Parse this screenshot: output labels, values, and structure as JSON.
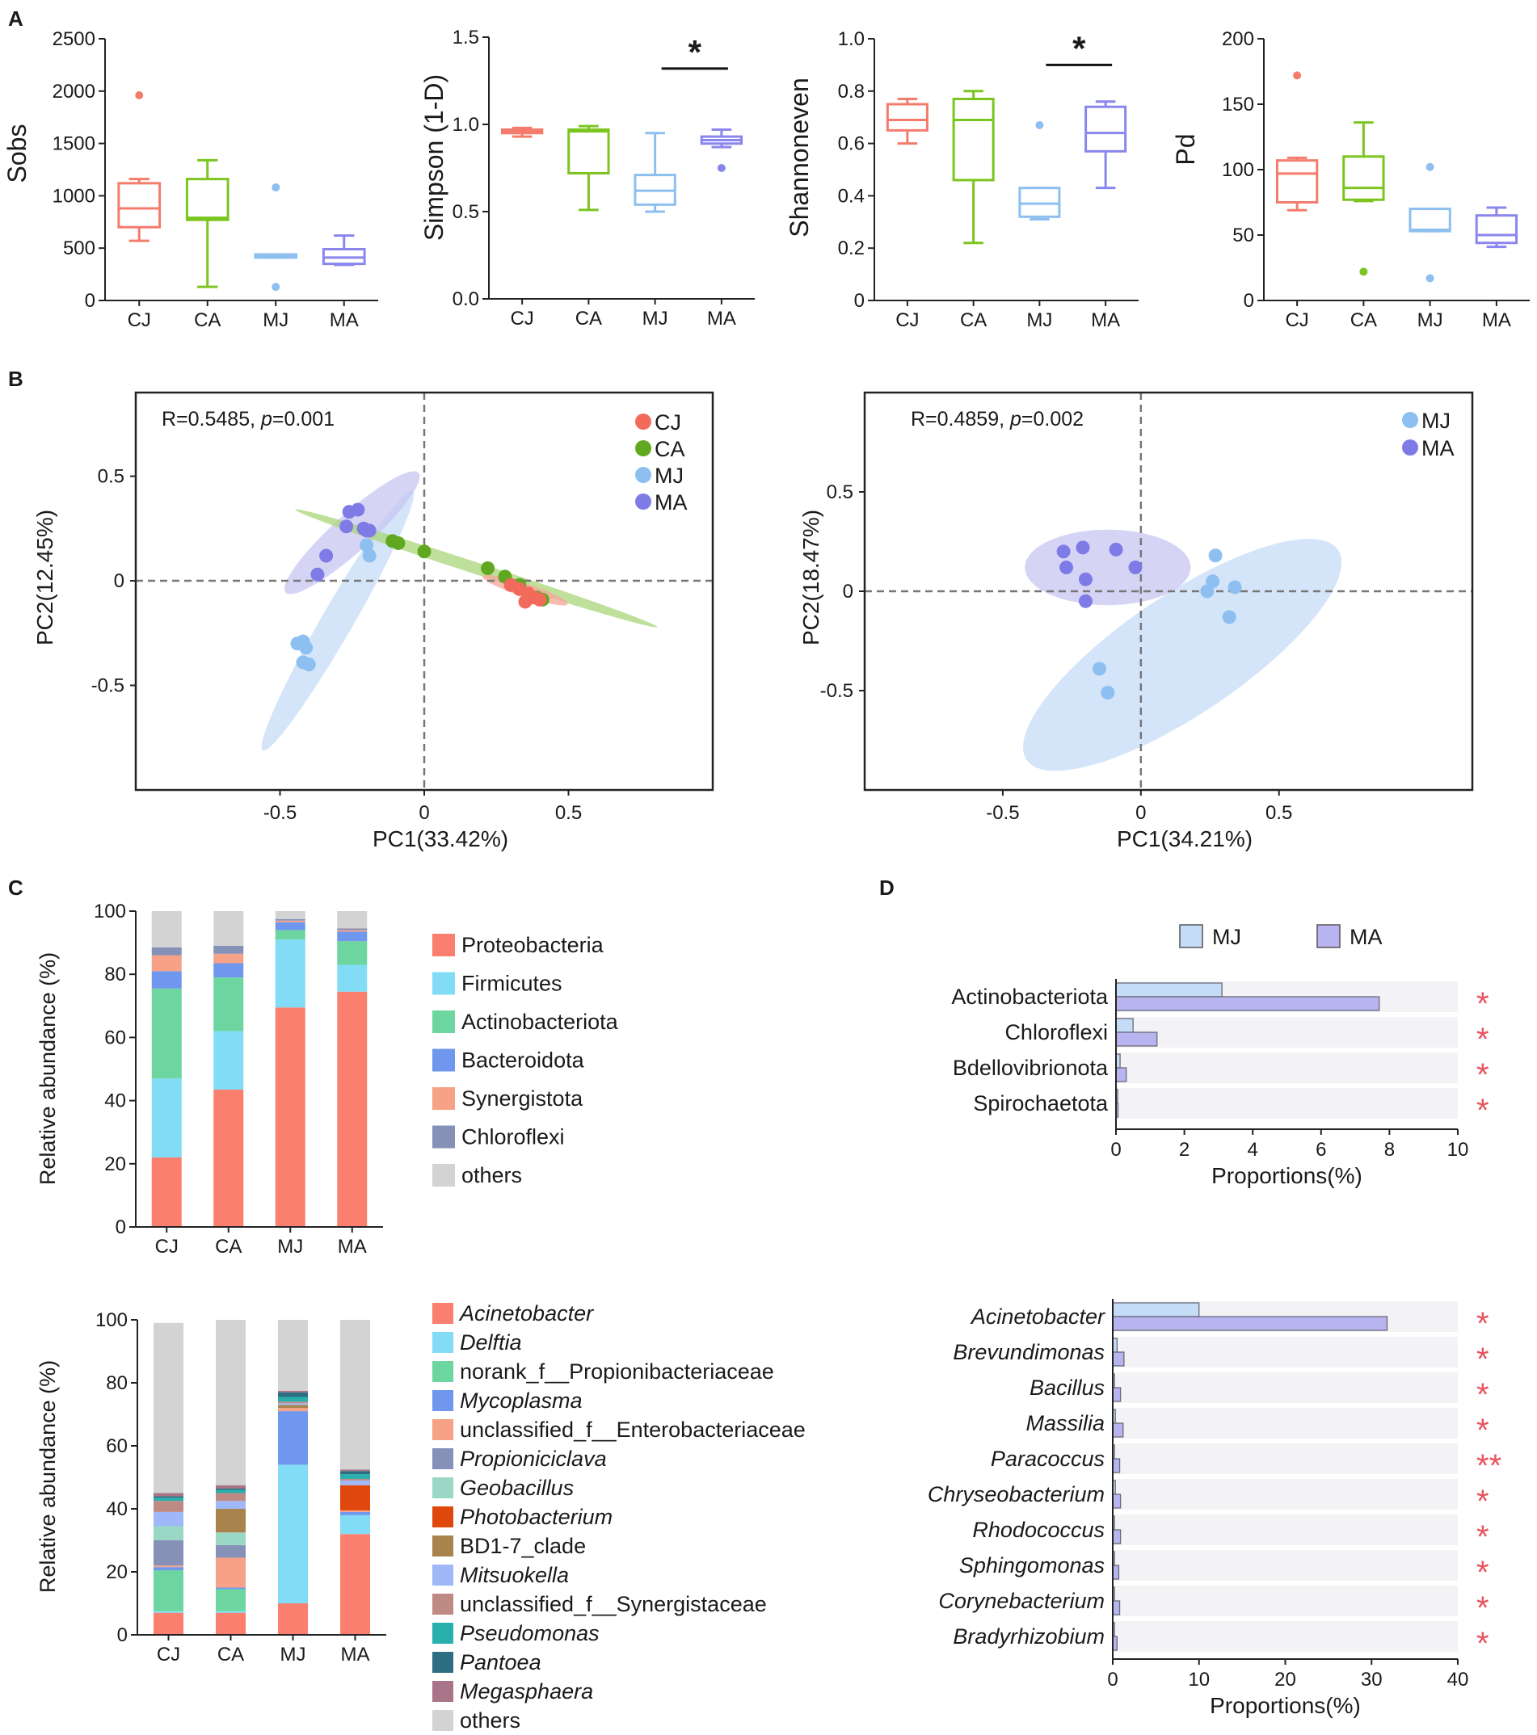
{
  "figure": {
    "background": "#ffffff"
  },
  "colors": {
    "CJ": "#f47c6c",
    "CA": "#7cc51f",
    "MJ": "#8dbff0",
    "MA": "#8a86ee",
    "ellipse_CJ": "#f6a59a",
    "ellipse_CA": "#a8d67a",
    "ellipse_MJ": "#c5dcf7",
    "ellipse_MA": "#c8c5f2",
    "pt_CJ": "#f26a5c",
    "pt_CA": "#5fa820",
    "pt_MJ": "#8dbff0",
    "pt_MA": "#7f7be6",
    "bar_MJ": "#c5dcf7",
    "bar_MA": "#b7b4f0",
    "star": "#e8525d"
  },
  "panels": {
    "A": "A",
    "B": "B",
    "C": "C",
    "D": "D"
  },
  "chart_data": [
    {
      "id": "A1",
      "type": "box",
      "ylabel": "Sobs",
      "categories": [
        "CJ",
        "CA",
        "MJ",
        "MA"
      ],
      "ylim": [
        0,
        2500
      ],
      "yticks": [
        0,
        500,
        1000,
        1500,
        2000,
        2500
      ],
      "boxes": [
        {
          "group": "CJ",
          "min": 570,
          "q1": 700,
          "median": 880,
          "q3": 1120,
          "max": 1160,
          "outliers": [
            1960
          ]
        },
        {
          "group": "CA",
          "min": 130,
          "q1": 770,
          "median": 790,
          "q3": 1160,
          "max": 1340,
          "outliers": []
        },
        {
          "group": "MJ",
          "min": 410,
          "q1": 410,
          "median": 420,
          "q3": 440,
          "max": 440,
          "outliers": [
            1080,
            130
          ]
        },
        {
          "group": "MA",
          "min": 340,
          "q1": 350,
          "median": 410,
          "q3": 490,
          "max": 620,
          "outliers": []
        }
      ],
      "significance": []
    },
    {
      "id": "A2",
      "type": "box",
      "ylabel": "Simpson  (1-D)",
      "categories": [
        "CJ",
        "CA",
        "MJ",
        "MA"
      ],
      "ylim": [
        0,
        1.5
      ],
      "yticks": [
        0.0,
        0.5,
        1.0,
        1.5
      ],
      "ytick_labels": [
        "0.0",
        "0.5",
        "1.0",
        "1.5"
      ],
      "boxes": [
        {
          "group": "CJ",
          "min": 0.93,
          "q1": 0.95,
          "median": 0.96,
          "q3": 0.97,
          "max": 0.98,
          "outliers": []
        },
        {
          "group": "CA",
          "min": 0.51,
          "q1": 0.72,
          "median": 0.96,
          "q3": 0.97,
          "max": 0.99,
          "outliers": []
        },
        {
          "group": "MJ",
          "min": 0.5,
          "q1": 0.54,
          "median": 0.62,
          "q3": 0.71,
          "max": 0.95,
          "outliers": []
        },
        {
          "group": "MA",
          "min": 0.87,
          "q1": 0.89,
          "median": 0.91,
          "q3": 0.93,
          "max": 0.97,
          "outliers": [
            0.75
          ]
        }
      ],
      "significance": [
        {
          "from": "MJ",
          "to": "MA",
          "label": "*",
          "y": 1.32
        }
      ]
    },
    {
      "id": "A3",
      "type": "box",
      "ylabel": "Shannoneven",
      "categories": [
        "CJ",
        "CA",
        "MJ",
        "MA"
      ],
      "ylim": [
        0,
        1.0
      ],
      "yticks": [
        0,
        0.2,
        0.4,
        0.6,
        0.8,
        1.0
      ],
      "ytick_labels": [
        "0",
        "0.2",
        "0.4",
        "0.6",
        "0.8",
        "1.0"
      ],
      "boxes": [
        {
          "group": "CJ",
          "min": 0.6,
          "q1": 0.65,
          "median": 0.69,
          "q3": 0.75,
          "max": 0.77,
          "outliers": []
        },
        {
          "group": "CA",
          "min": 0.22,
          "q1": 0.46,
          "median": 0.69,
          "q3": 0.77,
          "max": 0.8,
          "outliers": []
        },
        {
          "group": "MJ",
          "min": 0.31,
          "q1": 0.32,
          "median": 0.37,
          "q3": 0.43,
          "max": 0.43,
          "outliers": [
            0.67
          ]
        },
        {
          "group": "MA",
          "min": 0.43,
          "q1": 0.57,
          "median": 0.64,
          "q3": 0.74,
          "max": 0.76,
          "outliers": []
        }
      ],
      "significance": [
        {
          "from": "MJ",
          "to": "MA",
          "label": "*",
          "y": 0.9
        }
      ]
    },
    {
      "id": "A4",
      "type": "box",
      "ylabel": "Pd",
      "categories": [
        "CJ",
        "CA",
        "MJ",
        "MA"
      ],
      "ylim": [
        0,
        200
      ],
      "yticks": [
        0,
        50,
        100,
        150,
        200
      ],
      "boxes": [
        {
          "group": "CJ",
          "min": 69,
          "q1": 75,
          "median": 97,
          "q3": 107,
          "max": 109,
          "outliers": [
            172
          ]
        },
        {
          "group": "CA",
          "min": 76,
          "q1": 77,
          "median": 86,
          "q3": 110,
          "max": 136,
          "outliers": [
            22
          ]
        },
        {
          "group": "MJ",
          "min": 53,
          "q1": 53,
          "median": 54,
          "q3": 70,
          "max": 70,
          "outliers": [
            102,
            17
          ]
        },
        {
          "group": "MA",
          "min": 41,
          "q1": 44,
          "median": 50,
          "q3": 65,
          "max": 71,
          "outliers": []
        }
      ],
      "significance": []
    },
    {
      "id": "B1",
      "type": "scatter",
      "xlabel": "PC1(33.42%)",
      "ylabel": "PC2(12.45%)",
      "annotation_prefix": "R=0.5485, ",
      "annotation_p": "p",
      "annotation_value": "=0.001",
      "xlim": [
        -1.0,
        1.0
      ],
      "ylim": [
        -1.0,
        0.9
      ],
      "xticks": [
        -0.5,
        0,
        0.5
      ],
      "xtick_labels": [
        "-0.5",
        "0",
        "0.5"
      ],
      "yticks": [
        0.5,
        0,
        -0.5
      ],
      "ytick_labels": [
        "0.5",
        "0",
        "-0.5"
      ],
      "legend": [
        "CJ",
        "CA",
        "MJ",
        "MA"
      ],
      "ellipses": [
        {
          "group": "MJ",
          "cx": -0.3,
          "cy": -0.19,
          "rx": 0.52,
          "ry": 0.075,
          "angle_deg": 60
        },
        {
          "group": "MA",
          "cx": -0.25,
          "cy": 0.23,
          "rx": 0.31,
          "ry": 0.09,
          "angle_deg": 42
        },
        {
          "group": "CA",
          "cx": 0.18,
          "cy": 0.06,
          "rx": 0.66,
          "ry": 0.028,
          "angle_deg": -18
        },
        {
          "group": "CJ",
          "cx": 0.35,
          "cy": -0.045,
          "rx": 0.155,
          "ry": 0.032,
          "angle_deg": -18
        }
      ],
      "series": [
        {
          "name": "CA",
          "x": [
            -0.11,
            -0.09,
            0.0,
            0.22,
            0.28,
            0.33,
            0.39,
            0.41
          ],
          "y": [
            0.19,
            0.18,
            0.14,
            0.06,
            0.02,
            -0.02,
            -0.08,
            -0.09
          ]
        },
        {
          "name": "CJ",
          "x": [
            0.3,
            0.33,
            0.36,
            0.38,
            0.35,
            0.4
          ],
          "y": [
            -0.02,
            -0.04,
            -0.06,
            -0.08,
            -0.1,
            -0.09
          ]
        },
        {
          "name": "MA",
          "x": [
            -0.26,
            -0.23,
            -0.21,
            -0.27,
            -0.2,
            -0.34,
            -0.37,
            -0.19
          ],
          "y": [
            0.33,
            0.34,
            0.25,
            0.26,
            0.24,
            0.12,
            0.03,
            0.24
          ]
        },
        {
          "name": "MJ",
          "x": [
            -0.2,
            -0.19,
            -0.44,
            -0.42,
            -0.41,
            -0.42,
            -0.4
          ],
          "y": [
            0.17,
            0.12,
            -0.3,
            -0.29,
            -0.32,
            -0.39,
            -0.4
          ]
        }
      ]
    },
    {
      "id": "B2",
      "type": "scatter",
      "xlabel": "PC1(34.21%)",
      "ylabel": "PC2(18.47%)",
      "annotation_prefix": "R=0.4859, ",
      "annotation_p": "p",
      "annotation_value": "=0.002",
      "xlim": [
        -1.0,
        1.2
      ],
      "ylim": [
        -1.0,
        1.0
      ],
      "xticks": [
        -0.5,
        0,
        0.5
      ],
      "xtick_labels": [
        "-0.5",
        "0",
        "0.5"
      ],
      "yticks": [
        0.5,
        0,
        -0.5
      ],
      "ytick_labels": [
        "0.5",
        "0",
        "-0.5"
      ],
      "legend": [
        "MJ",
        "MA"
      ],
      "ellipses": [
        {
          "group": "MJ",
          "cx": 0.15,
          "cy": -0.32,
          "rx": 0.68,
          "ry": 0.3,
          "angle_deg": 34
        },
        {
          "group": "MA",
          "cx": -0.12,
          "cy": 0.12,
          "rx": 0.3,
          "ry": 0.19,
          "angle_deg": 0
        }
      ],
      "series": [
        {
          "name": "MA",
          "x": [
            -0.28,
            -0.21,
            -0.09,
            -0.27,
            -0.2,
            -0.02,
            -0.2
          ],
          "y": [
            0.2,
            0.22,
            0.21,
            0.12,
            0.06,
            0.12,
            -0.05
          ]
        },
        {
          "name": "MJ",
          "x": [
            0.27,
            0.26,
            0.34,
            0.24,
            0.32,
            -0.15,
            -0.12
          ],
          "y": [
            0.18,
            0.05,
            0.02,
            0.0,
            -0.13,
            -0.39,
            -0.51
          ]
        }
      ]
    },
    {
      "id": "C1",
      "type": "bar",
      "stacked": true,
      "ylabel": "Relative abundance (%)",
      "categories": [
        "CJ",
        "CA",
        "MJ",
        "MA"
      ],
      "ylim": [
        0,
        100
      ],
      "yticks": [
        0,
        20,
        40,
        60,
        80,
        100
      ],
      "series": [
        {
          "name": "Proteobacteria",
          "italic": false,
          "color": "#fb7f6f",
          "values": [
            22,
            43.5,
            69.5,
            74.5
          ]
        },
        {
          "name": "Firmicutes",
          "italic": false,
          "color": "#82dcf5",
          "values": [
            25,
            18.5,
            21.5,
            8.5
          ]
        },
        {
          "name": "Actinobacteriota",
          "italic": false,
          "color": "#6dd6a0",
          "values": [
            28.5,
            17,
            3,
            7.5
          ]
        },
        {
          "name": "Bacteroidota",
          "italic": false,
          "color": "#6f97ee",
          "values": [
            5.5,
            4.5,
            2.5,
            3
          ]
        },
        {
          "name": "Synergistota",
          "italic": false,
          "color": "#f7a187",
          "values": [
            5,
            3,
            0.5,
            0.5
          ]
        },
        {
          "name": "Chloroflexi",
          "italic": false,
          "color": "#8591b7",
          "values": [
            2.5,
            2.5,
            0.5,
            0.5
          ]
        },
        {
          "name": "others",
          "italic": false,
          "color": "#d3d3d3",
          "values": [
            11.5,
            11,
            2.5,
            5.5
          ]
        }
      ]
    },
    {
      "id": "C2",
      "type": "bar",
      "stacked": true,
      "ylabel": "Relative abundance (%)",
      "categories": [
        "CJ",
        "CA",
        "MJ",
        "MA"
      ],
      "ylim": [
        0,
        100
      ],
      "yticks": [
        0,
        20,
        40,
        60,
        80,
        100
      ],
      "series": [
        {
          "name": "Acinetobacter",
          "italic": true,
          "color": "#fb7f6f",
          "values": [
            7,
            7,
            10,
            32
          ]
        },
        {
          "name": "Delftia",
          "italic": true,
          "color": "#82dcf5",
          "values": [
            0.5,
            0.5,
            44,
            6
          ]
        },
        {
          "name": "norank_f__Propionibacteriaceae",
          "italic": false,
          "color": "#6dd6a0",
          "values": [
            13,
            7,
            0,
            0
          ]
        },
        {
          "name": "Mycoplasma",
          "italic": true,
          "color": "#6f97ee",
          "values": [
            1,
            0.5,
            17,
            1
          ]
        },
        {
          "name": "unclassified_f__Enterobacteriaceae",
          "italic": false,
          "color": "#f7a187",
          "values": [
            0.5,
            9.5,
            1,
            0.5
          ]
        },
        {
          "name": "Propioniciclava",
          "italic": true,
          "color": "#8591b7",
          "values": [
            8,
            4,
            0,
            0
          ]
        },
        {
          "name": "Geobacillus",
          "italic": true,
          "color": "#9ad7c4",
          "values": [
            4.5,
            4,
            0,
            0
          ]
        },
        {
          "name": "Photobacterium",
          "italic": true,
          "color": "#e0470c",
          "values": [
            0,
            0,
            0,
            8
          ]
        },
        {
          "name": "BD1-7_clade",
          "italic": false,
          "color": "#a8834c",
          "values": [
            0,
            7.5,
            1,
            0
          ]
        },
        {
          "name": "Mitsuokella",
          "italic": true,
          "color": "#9fb8f7",
          "values": [
            4.5,
            2.5,
            0.5,
            1.5
          ]
        },
        {
          "name": "unclassified_f__Synergistaceae",
          "italic": false,
          "color": "#bf8a84",
          "values": [
            3.5,
            2.5,
            0.5,
            0.5
          ]
        },
        {
          "name": "Pseudomonas",
          "italic": true,
          "color": "#2ab0ac",
          "values": [
            1,
            1,
            1.5,
            1.5
          ]
        },
        {
          "name": "Pantoea",
          "italic": true,
          "color": "#2e6e83",
          "values": [
            0.5,
            0.5,
            1.5,
            1
          ]
        },
        {
          "name": "Megasphaera",
          "italic": true,
          "color": "#a97388",
          "values": [
            1,
            1,
            0.5,
            0.5
          ]
        },
        {
          "name": "others",
          "italic": false,
          "color": "#d3d3d3",
          "values": [
            54,
            52.5,
            22.5,
            47.5
          ]
        }
      ]
    },
    {
      "id": "D1",
      "type": "bar",
      "orientation": "horizontal",
      "xlabel": "Proportions(%)",
      "xlim": [
        0,
        10
      ],
      "xticks": [
        0,
        2,
        4,
        6,
        8,
        10
      ],
      "legend": [
        "MJ",
        "MA"
      ],
      "categories": [
        "Actinobacteriota",
        "Chloroflexi",
        "Bdellovibrionota",
        "Spirochaetota"
      ],
      "italic": false,
      "series": [
        {
          "name": "MJ",
          "values": [
            3.1,
            0.5,
            0.12,
            0.05
          ]
        },
        {
          "name": "MA",
          "values": [
            7.7,
            1.2,
            0.3,
            0.06
          ]
        }
      ],
      "significance": [
        "*",
        "*",
        "*",
        "*"
      ]
    },
    {
      "id": "D2",
      "type": "bar",
      "orientation": "horizontal",
      "xlabel": "Proportions(%)",
      "xlim": [
        0,
        40
      ],
      "xticks": [
        0,
        10,
        20,
        30,
        40
      ],
      "categories": [
        "Acinetobacter",
        "Brevundimonas",
        "Bacillus",
        "Massilia",
        "Paracoccus",
        "Chryseobacterium",
        "Rhodococcus",
        "Sphingomonas",
        "Corynebacterium",
        "Bradyrhizobium"
      ],
      "italic": true,
      "series": [
        {
          "name": "MJ",
          "values": [
            10,
            0.5,
            0.2,
            0.3,
            0.2,
            0.3,
            0.2,
            0.2,
            0.2,
            0.2
          ]
        },
        {
          "name": "MA",
          "values": [
            31.8,
            1.3,
            0.9,
            1.2,
            0.8,
            0.9,
            0.9,
            0.7,
            0.8,
            0.5
          ]
        }
      ],
      "significance": [
        "*",
        "*",
        "*",
        "*",
        "**",
        "*",
        "*",
        "*",
        "*",
        "*"
      ]
    }
  ]
}
